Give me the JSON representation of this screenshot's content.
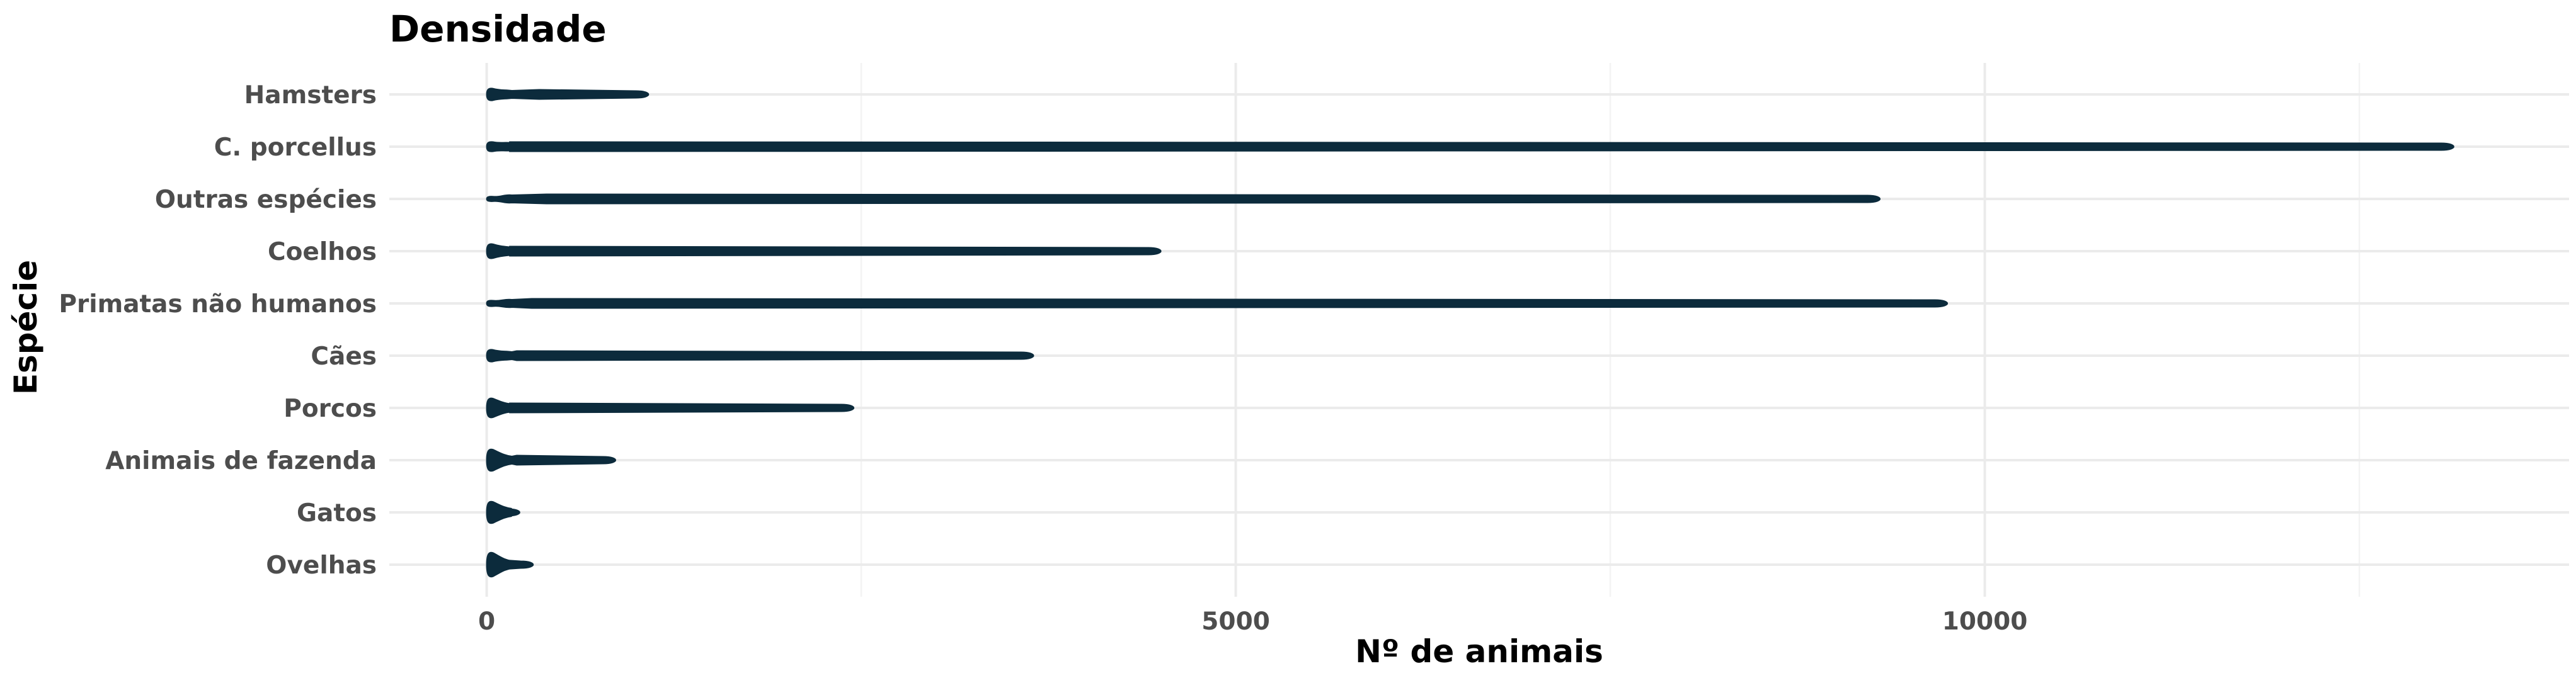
{
  "colors": {
    "violin": "#0c2b3c",
    "grid_major": "#ebebeb",
    "grid_minor": "#f3f3f3",
    "tick_text": "#4d4d4d",
    "title_text": "#000000"
  },
  "chart_data": {
    "type": "violin",
    "orientation": "horizontal",
    "title": "Densidade",
    "xlabel": "Nº de animais",
    "ylabel": "Espécie",
    "xlim": [
      -650,
      13900
    ],
    "xticks": [
      0,
      5000,
      10000
    ],
    "xtick_labels": [
      "0",
      "5000",
      "10000"
    ],
    "grid": true,
    "legend": "none",
    "categories": [
      "Hamsters",
      "C. porcellus",
      "Outras espécies",
      "Coelhos",
      "Primatas não humanos",
      "Cães",
      "Porcos",
      "Animais de fazenda",
      "Gatos",
      "Ovelhas"
    ],
    "series": [
      {
        "category": "Hamsters",
        "min": 0,
        "max": 1080,
        "bulge_max": 350,
        "peak_half_width": 0.25
      },
      {
        "category": "C. porcellus",
        "min": 0,
        "max": 13130,
        "bulge_max": 150,
        "peak_half_width": 0.2
      },
      {
        "category": "Outras espécies",
        "min": 0,
        "max": 9300,
        "bulge_max": 400,
        "peak_half_width": 0.1
      },
      {
        "category": "Coelhos",
        "min": 0,
        "max": 4500,
        "bulge_max": 150,
        "peak_half_width": 0.3
      },
      {
        "category": "Primatas não humanos",
        "min": 0,
        "max": 9750,
        "bulge_max": 300,
        "peak_half_width": 0.12
      },
      {
        "category": "Cães",
        "min": 0,
        "max": 3650,
        "bulge_max": 200,
        "peak_half_width": 0.25
      },
      {
        "category": "Porcos",
        "min": 0,
        "max": 2450,
        "bulge_max": 150,
        "peak_half_width": 0.4
      },
      {
        "category": "Animais de fazenda",
        "min": 0,
        "max": 860,
        "bulge_max": 200,
        "peak_half_width": 0.45
      },
      {
        "category": "Gatos",
        "min": 0,
        "max": 220,
        "bulge_max": 120,
        "peak_half_width": 0.45
      },
      {
        "category": "Ovelhas",
        "min": 0,
        "max": 310,
        "bulge_max": 100,
        "peak_half_width": 0.5
      }
    ]
  }
}
